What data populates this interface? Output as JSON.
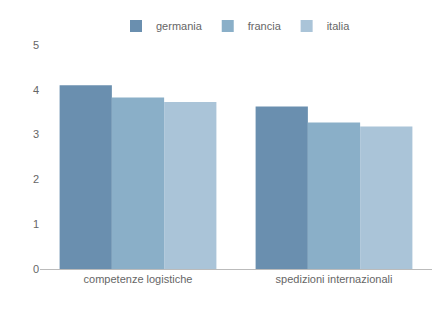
{
  "chart_data": {
    "type": "bar",
    "categories": [
      "competenze logistiche",
      "spedizioni internazionali"
    ],
    "series": [
      {
        "name": "germania",
        "color": "#6a8faf",
        "values": [
          4.1,
          3.63
        ]
      },
      {
        "name": "francia",
        "color": "#8aafc8",
        "values": [
          3.83,
          3.27
        ]
      },
      {
        "name": "italia",
        "color": "#aac4d8",
        "values": [
          3.73,
          3.18
        ]
      }
    ],
    "ylim": [
      0,
      5
    ],
    "yticks": [
      0,
      1,
      2,
      3,
      4,
      5
    ],
    "grid": false,
    "legend": "top"
  }
}
